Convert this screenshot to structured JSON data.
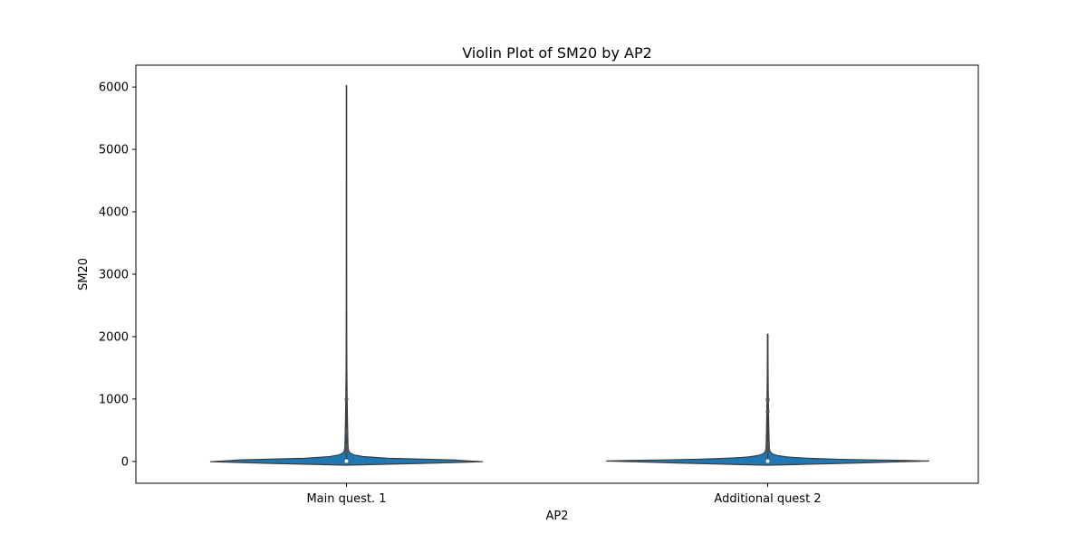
{
  "chart_data": {
    "type": "violin",
    "title": "Violin Plot of SM20 by AP2",
    "xlabel": "AP2",
    "ylabel": "SM20",
    "categories": [
      "Main quest. 1",
      "Additional quest 2"
    ],
    "ylim": [
      -350,
      6350
    ],
    "yticks": [
      0,
      1000,
      2000,
      3000,
      4000,
      5000,
      6000
    ],
    "grid": false,
    "legend": "none",
    "colors": {
      "violin_fill": "#1f77b4",
      "violin_edge": "#3d3d3d",
      "inner": "#555555"
    },
    "violins": [
      {
        "category": "Main quest. 1",
        "min": 0,
        "q1": 0,
        "median": 5,
        "q3": 20,
        "whisker_high": 6030,
        "kde_low": -60,
        "kde_high": 6030,
        "outliers": [
          150,
          200,
          260,
          450,
          500,
          1000
        ]
      },
      {
        "category": "Additional quest 2",
        "min": 0,
        "q1": 0,
        "median": 5,
        "q3": 25,
        "whisker_high": 2040,
        "kde_low": -60,
        "kde_high": 2040,
        "outliers": [
          150,
          200,
          260,
          300,
          800,
          980,
          1000
        ]
      }
    ]
  }
}
